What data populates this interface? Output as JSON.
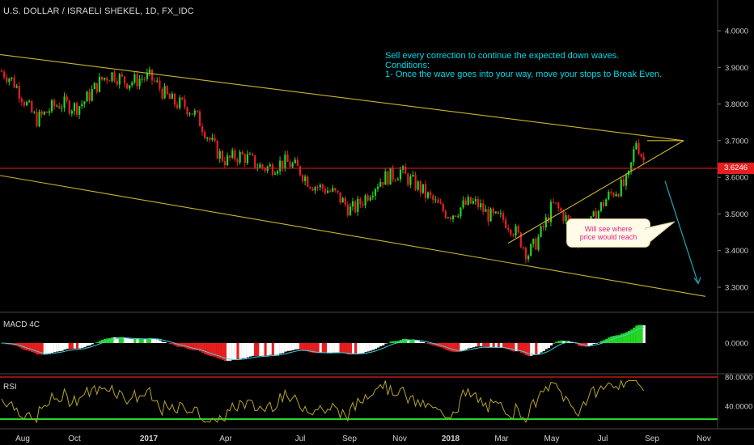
{
  "header": {
    "title": "U.S. DOLLAR / ISRAELI SHEKEL, 1D, FX_IDC"
  },
  "annotations": {
    "note_lines": [
      "Sell every correction to continue the expected down waves.",
      "Conditions:",
      "1- Once the wave goes into your way, move your stops to Break Even."
    ],
    "bubble_lines": [
      "Will see where",
      "price would reach"
    ]
  },
  "colors": {
    "background": "#000000",
    "up_candle": "#22d622",
    "down_candle": "#e81e1e",
    "trendline": "#c9b431",
    "forecast_arrow": "#1fa6b8",
    "price_line": "#e81e1e",
    "rsi_line": "#b8a428",
    "macd_signal": "#3fd0e0",
    "rsi_upper_band": "#e81e1e",
    "rsi_lower_band": "#22d622"
  },
  "chart_data": [
    {
      "type": "candlestick",
      "title": "U.S. DOLLAR / ISRAELI SHEKEL, 1D, FX_IDC",
      "last_price": "3.6246",
      "y_ticks": [
        "4.0000",
        "3.9000",
        "3.8000",
        "3.7000",
        "3.6000",
        "3.5000",
        "3.4000",
        "3.3000"
      ],
      "ylim": [
        3.24,
        4.07
      ],
      "x_ticks": [
        "Aug",
        "Oct",
        "2017",
        "Apr",
        "Jul",
        "Sep",
        "Nov",
        "2018",
        "Mar",
        "May",
        "Jul",
        "Sep",
        "Nov"
      ],
      "trendlines": [
        {
          "from": [
            "Aug 2016",
            3.935
          ],
          "to": [
            "Sep 2018",
            3.7
          ]
        },
        {
          "from": [
            "Aug 2016",
            3.605
          ],
          "to": [
            "Oct 2018",
            3.275
          ]
        },
        {
          "from": [
            "Mar 2018",
            3.42
          ],
          "to": [
            "Sep 2018",
            3.7
          ]
        }
      ],
      "forecast_arrow": {
        "from": [
          "Sep 2018",
          3.59
        ],
        "to": [
          "Oct 2018",
          3.31
        ]
      },
      "price_path": [
        {
          "t": "Aug 2016",
          "close": 3.89
        },
        {
          "t": "Sep 2016",
          "close": 3.77
        },
        {
          "t": "Oct 2016",
          "close": 3.8
        },
        {
          "t": "Nov 2016",
          "close": 3.88
        },
        {
          "t": "Dec 2016",
          "close": 3.86
        },
        {
          "t": "Jan 2017",
          "close": 3.8
        },
        {
          "t": "Feb 2017",
          "close": 3.65
        },
        {
          "t": "Mar 2017",
          "close": 3.64
        },
        {
          "t": "Apr 2017",
          "close": 3.62
        },
        {
          "t": "May 2017",
          "close": 3.55
        },
        {
          "t": "Jun 2017",
          "close": 3.52
        },
        {
          "t": "Jul 2017",
          "close": 3.57
        },
        {
          "t": "Aug 2017",
          "close": 3.63
        },
        {
          "t": "Sep 2017",
          "close": 3.54
        },
        {
          "t": "Oct 2017",
          "close": 3.51
        },
        {
          "t": "Nov 2017",
          "close": 3.52
        },
        {
          "t": "Dec 2017",
          "close": 3.49
        },
        {
          "t": "Jan 2018",
          "close": 3.39
        },
        {
          "t": "Feb 2018",
          "close": 3.52
        },
        {
          "t": "Mar 2018",
          "close": 3.44
        },
        {
          "t": "Apr 2018",
          "close": 3.52
        },
        {
          "t": "May 2018",
          "close": 3.6
        },
        {
          "t": "Jun 2018",
          "close": 3.57
        },
        {
          "t": "Jul 2018",
          "close": 3.65
        },
        {
          "t": "Aug 2018",
          "close": 3.71
        },
        {
          "t": "Aug 2018 end",
          "close": 3.6246
        }
      ]
    },
    {
      "type": "bar",
      "title": "MACD 4C",
      "y_ticks": [
        "0.0000"
      ],
      "note": "histogram above zero green/white, below zero red/white"
    },
    {
      "type": "line",
      "title": "RSI",
      "y_ticks": [
        "80.0000",
        "40.0000"
      ]
    }
  ]
}
